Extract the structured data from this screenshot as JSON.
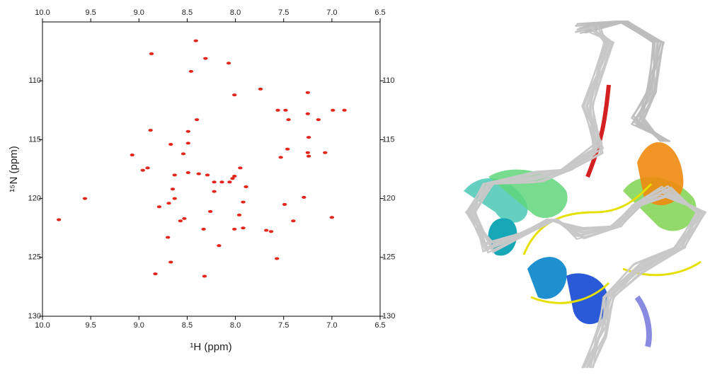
{
  "chart_data": {
    "type": "scatter",
    "xlabel": "¹H (ppm)",
    "ylabel": "¹⁵N (ppm)",
    "color": "#e3261b",
    "x": [
      8.41,
      8.87,
      8.31,
      8.07,
      8.46,
      7.74,
      8.01,
      7.25,
      7.56,
      7.48,
      7.25,
      6.99,
      6.87,
      7.45,
      8.4,
      7.14,
      8.88,
      8.49,
      7.24,
      8.49,
      8.67,
      7.46,
      8.54,
      9.07,
      7.07,
      7.25,
      7.24,
      7.53,
      8.91,
      8.96,
      7.95,
      8.49,
      8.38,
      8.63,
      8.29,
      8.01,
      8.22,
      8.14,
      8.06,
      8.03,
      7.89,
      8.65,
      8.22,
      9.56,
      8.63,
      7.29,
      7.92,
      8.69,
      7.49,
      8.79,
      7.96,
      8.26,
      8.53,
      8.57,
      9.83,
      7.0,
      7.4,
      8.33,
      7.92,
      8.01,
      7.68,
      7.63,
      8.7,
      8.17,
      7.57,
      8.67,
      8.83,
      8.32
    ],
    "values": [
      106.6,
      107.7,
      108.1,
      108.5,
      109.2,
      110.7,
      111.2,
      111.0,
      112.5,
      112.5,
      112.8,
      112.5,
      112.5,
      113.3,
      113.3,
      113.3,
      114.2,
      114.3,
      114.8,
      115.3,
      115.4,
      115.8,
      116.2,
      116.3,
      116.1,
      116.1,
      116.4,
      116.5,
      117.4,
      117.6,
      117.4,
      117.8,
      117.9,
      118.0,
      118.0,
      118.1,
      118.6,
      118.6,
      118.6,
      118.3,
      119.0,
      119.2,
      119.4,
      120.0,
      120.0,
      119.9,
      120.3,
      120.4,
      120.5,
      120.7,
      121.4,
      121.1,
      121.7,
      121.9,
      121.8,
      121.6,
      121.9,
      122.6,
      122.5,
      122.6,
      122.7,
      122.8,
      123.3,
      124.0,
      125.1,
      125.4,
      126.4,
      126.6
    ],
    "xlim": [
      10,
      6.5
    ],
    "xticks": [
      {
        "value": 10,
        "label": "10.0"
      },
      9.5,
      {
        "value": 9,
        "label": "9.0"
      },
      8.5,
      {
        "value": 8,
        "label": "8.0"
      },
      7.5,
      {
        "value": 7,
        "label": "7.0"
      },
      6.5
    ],
    "ylim": [
      105,
      130
    ],
    "yticks": [
      110,
      115,
      120,
      125,
      130
    ]
  }
}
